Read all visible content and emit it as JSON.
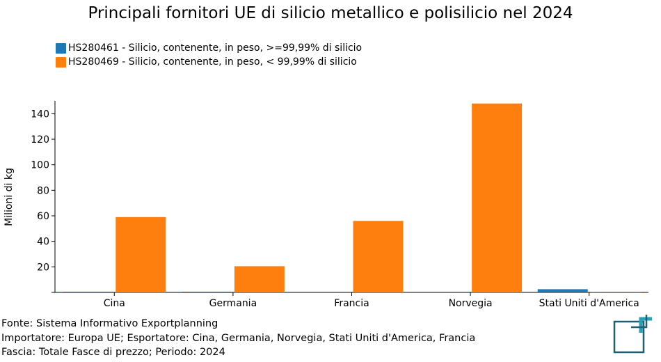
{
  "chart_data": {
    "type": "bar",
    "title": "Principali fornitori UE di silicio metallico e polisilicio nel 2024",
    "ylabel": "Milioni di kg",
    "xlabel": "",
    "categories": [
      "Cina",
      "Germania",
      "Francia",
      "Norvegia",
      "Stati Uniti d'America"
    ],
    "series": [
      {
        "name": "HS280461 - Silicio, contenente, in peso, >=99,99% di silicio",
        "color": "#1f77b4",
        "values": [
          0.3,
          0.3,
          0,
          0,
          2.5
        ]
      },
      {
        "name": "HS280469 - Silicio, contenente, in peso, < 99,99% di silicio",
        "color": "#ff7f0e",
        "values": [
          59,
          20.5,
          56,
          148,
          0.4
        ]
      }
    ],
    "ylim": [
      0,
      150
    ],
    "yticks": [
      20,
      40,
      60,
      80,
      100,
      120,
      140
    ],
    "grid": false,
    "legend": "top-left"
  },
  "footer": {
    "line1": "Fonte: Sistema Informativo Exportplanning",
    "line2": "Importatore: Europa UE; Esportatore: Cina, Germania, Norvegia, Stati Uniti d'America, Francia",
    "line3": "Fascia: Totale Fasce di prezzo; Periodo: 2024"
  },
  "logo_icon": "exportplanning-logo-icon"
}
